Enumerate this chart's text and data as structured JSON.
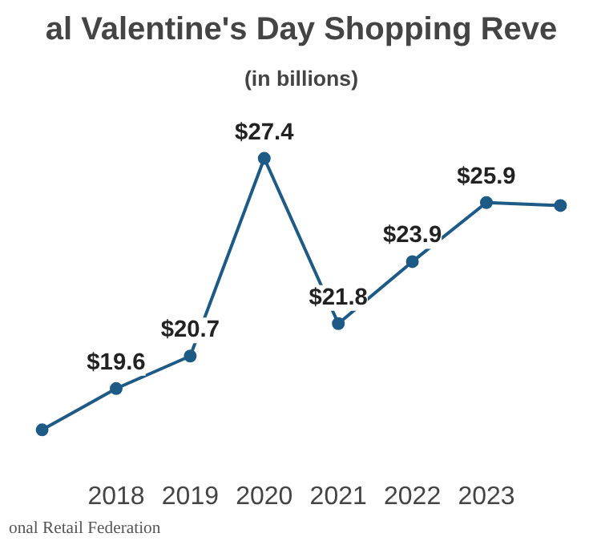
{
  "chart_data": {
    "type": "line",
    "title": "al Valentine's Day Shopping Reve",
    "subtitle": "(in billions)",
    "categories": [
      null,
      "2018",
      "2019",
      "2020",
      "2021",
      "2022",
      "2023",
      null
    ],
    "series": [
      {
        "color": "#1d5a86",
        "values": [
          18.2,
          19.6,
          20.7,
          27.4,
          21.8,
          23.9,
          25.9,
          25.8
        ],
        "value_labels": [
          null,
          "$19.6",
          "$20.7",
          "$27.4",
          "$21.8",
          "$23.9",
          "$25.9",
          null
        ]
      }
    ],
    "marker": "circle",
    "line_style": "solid",
    "grid": false,
    "annotations": [
      "onal Retail Federation"
    ]
  }
}
